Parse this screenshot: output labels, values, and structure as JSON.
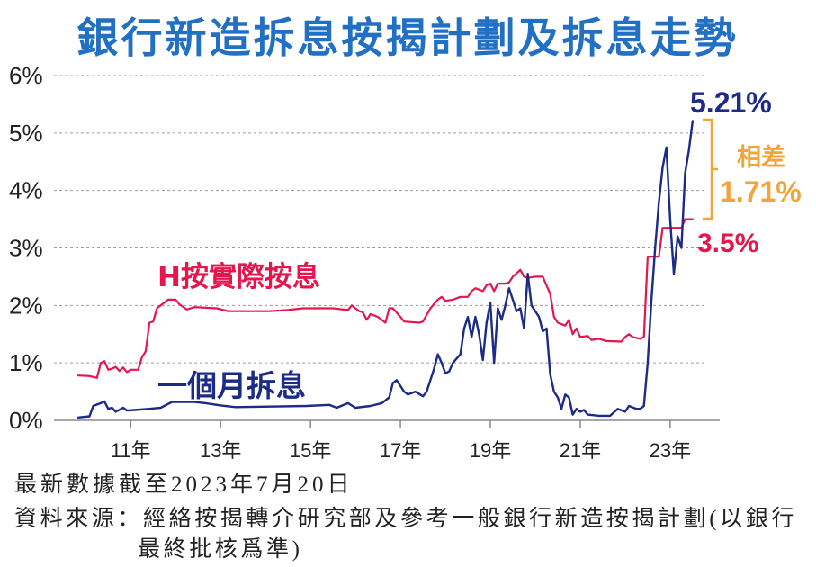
{
  "chart_data": {
    "type": "line",
    "title": "銀行新造拆息按揭計劃及拆息走勢",
    "xlabel": "",
    "ylabel": "",
    "xlim": [
      "2009-05",
      "2024-02"
    ],
    "ylim": [
      0,
      6
    ],
    "grid": true,
    "y_ticks": [
      {
        "label": "0%",
        "value": 0
      },
      {
        "label": "1%",
        "value": 1
      },
      {
        "label": "2%",
        "value": 2
      },
      {
        "label": "3%",
        "value": 3
      },
      {
        "label": "4%",
        "value": 4
      },
      {
        "label": "5%",
        "value": 5
      },
      {
        "label": "6%",
        "value": 6
      }
    ],
    "x_ticks": [
      {
        "label": "11年",
        "date": "2011-01"
      },
      {
        "label": "13年",
        "date": "2013-01"
      },
      {
        "label": "15年",
        "date": "2015-01"
      },
      {
        "label": "17年",
        "date": "2017-01"
      },
      {
        "label": "19年",
        "date": "2019-01"
      },
      {
        "label": "21年",
        "date": "2021-01"
      },
      {
        "label": "23年",
        "date": "2023-01"
      }
    ],
    "series": [
      {
        "name": "H按實際按息",
        "color": "#e3164d",
        "points": [
          [
            "2009-11",
            0.78
          ],
          [
            "2010-02",
            0.77
          ],
          [
            "2010-04",
            0.74
          ],
          [
            "2010-05",
            1.0
          ],
          [
            "2010-06",
            1.03
          ],
          [
            "2010-07",
            0.88
          ],
          [
            "2010-08",
            0.9
          ],
          [
            "2010-09",
            0.93
          ],
          [
            "2010-10",
            0.86
          ],
          [
            "2010-11",
            0.92
          ],
          [
            "2010-12",
            0.84
          ],
          [
            "2011-01",
            0.88
          ],
          [
            "2011-03",
            0.88
          ],
          [
            "2011-04",
            1.1
          ],
          [
            "2011-05",
            1.2
          ],
          [
            "2011-06",
            1.7
          ],
          [
            "2011-07",
            1.72
          ],
          [
            "2011-08",
            1.95
          ],
          [
            "2011-09",
            2.0
          ],
          [
            "2011-11",
            2.1
          ],
          [
            "2012-01",
            2.1
          ],
          [
            "2012-02",
            2.02
          ],
          [
            "2012-04",
            1.93
          ],
          [
            "2012-06",
            1.97
          ],
          [
            "2012-09",
            1.96
          ],
          [
            "2012-12",
            1.95
          ],
          [
            "2013-03",
            1.9
          ],
          [
            "2014-02",
            1.9
          ],
          [
            "2014-07",
            1.92
          ],
          [
            "2014-11",
            1.95
          ],
          [
            "2015-07",
            1.95
          ],
          [
            "2015-11",
            1.92
          ],
          [
            "2015-12",
            2.0
          ],
          [
            "2016-02",
            1.9
          ],
          [
            "2016-03",
            1.88
          ],
          [
            "2016-04",
            1.75
          ],
          [
            "2016-05",
            1.85
          ],
          [
            "2016-07",
            1.8
          ],
          [
            "2016-09",
            1.7
          ],
          [
            "2016-10",
            1.95
          ],
          [
            "2016-11",
            1.95
          ],
          [
            "2017-01",
            1.8
          ],
          [
            "2017-02",
            1.72
          ],
          [
            "2017-06",
            1.7
          ],
          [
            "2017-07",
            1.72
          ],
          [
            "2017-09",
            1.95
          ],
          [
            "2017-11",
            2.1
          ],
          [
            "2017-12",
            2.15
          ],
          [
            "2018-01",
            2.08
          ],
          [
            "2018-03",
            2.1
          ],
          [
            "2018-05",
            2.15
          ],
          [
            "2018-07",
            2.15
          ],
          [
            "2018-08",
            2.25
          ],
          [
            "2018-09",
            2.3
          ],
          [
            "2018-11",
            2.25
          ],
          [
            "2018-12",
            2.35
          ],
          [
            "2019-01",
            2.38
          ],
          [
            "2019-02",
            2.25
          ],
          [
            "2019-03",
            2.38
          ],
          [
            "2019-05",
            2.38
          ],
          [
            "2019-06",
            2.4
          ],
          [
            "2019-07",
            2.5
          ],
          [
            "2019-09",
            2.62
          ],
          [
            "2019-10",
            2.5
          ],
          [
            "2019-11",
            2.48
          ],
          [
            "2020-01",
            2.5
          ],
          [
            "2020-03",
            2.5
          ],
          [
            "2020-05",
            2.2
          ],
          [
            "2020-06",
            1.8
          ],
          [
            "2020-07",
            1.7
          ],
          [
            "2020-09",
            1.65
          ],
          [
            "2020-10",
            1.75
          ],
          [
            "2020-11",
            1.5
          ],
          [
            "2020-12",
            1.6
          ],
          [
            "2021-01",
            1.45
          ],
          [
            "2021-03",
            1.47
          ],
          [
            "2021-04",
            1.4
          ],
          [
            "2021-06",
            1.42
          ],
          [
            "2021-08",
            1.38
          ],
          [
            "2021-12",
            1.37
          ],
          [
            "2022-01",
            1.45
          ],
          [
            "2022-02",
            1.5
          ],
          [
            "2022-03",
            1.45
          ],
          [
            "2022-05",
            1.42
          ],
          [
            "2022-06",
            1.45
          ],
          [
            "2022-07",
            2.85
          ],
          [
            "2022-10",
            2.85
          ],
          [
            "2022-11",
            3.35
          ],
          [
            "2023-04",
            3.35
          ],
          [
            "2023-05",
            3.5
          ],
          [
            "2023-07",
            3.5
          ]
        ]
      },
      {
        "name": "一個月拆息",
        "color": "#1b2b86",
        "points": [
          [
            "2009-11",
            0.05
          ],
          [
            "2010-02",
            0.07
          ],
          [
            "2010-03",
            0.25
          ],
          [
            "2010-05",
            0.3
          ],
          [
            "2010-06",
            0.33
          ],
          [
            "2010-07",
            0.2
          ],
          [
            "2010-08",
            0.22
          ],
          [
            "2010-09",
            0.15
          ],
          [
            "2010-11",
            0.22
          ],
          [
            "2010-12",
            0.17
          ],
          [
            "2011-02",
            0.18
          ],
          [
            "2011-06",
            0.2
          ],
          [
            "2011-09",
            0.22
          ],
          [
            "2011-12",
            0.32
          ],
          [
            "2012-06",
            0.32
          ],
          [
            "2012-09",
            0.3
          ],
          [
            "2013-01",
            0.26
          ],
          [
            "2013-05",
            0.23
          ],
          [
            "2014-02",
            0.24
          ],
          [
            "2014-12",
            0.25
          ],
          [
            "2015-06",
            0.27
          ],
          [
            "2015-08",
            0.22
          ],
          [
            "2015-11",
            0.3
          ],
          [
            "2016-01",
            0.22
          ],
          [
            "2016-05",
            0.25
          ],
          [
            "2016-08",
            0.3
          ],
          [
            "2016-10",
            0.4
          ],
          [
            "2016-11",
            0.65
          ],
          [
            "2016-12",
            0.7
          ],
          [
            "2017-02",
            0.5
          ],
          [
            "2017-03",
            0.45
          ],
          [
            "2017-05",
            0.5
          ],
          [
            "2017-07",
            0.42
          ],
          [
            "2017-08",
            0.5
          ],
          [
            "2017-10",
            0.9
          ],
          [
            "2017-11",
            1.15
          ],
          [
            "2017-12",
            1.0
          ],
          [
            "2018-01",
            0.82
          ],
          [
            "2018-02",
            0.85
          ],
          [
            "2018-03",
            1.0
          ],
          [
            "2018-05",
            1.15
          ],
          [
            "2018-06",
            1.6
          ],
          [
            "2018-07",
            1.8
          ],
          [
            "2018-08",
            1.45
          ],
          [
            "2018-09",
            1.8
          ],
          [
            "2018-10",
            1.5
          ],
          [
            "2018-11",
            1.05
          ],
          [
            "2018-12",
            1.7
          ],
          [
            "2019-01",
            2.05
          ],
          [
            "2019-02",
            1.0
          ],
          [
            "2019-03",
            1.95
          ],
          [
            "2019-04",
            1.75
          ],
          [
            "2019-05",
            2.0
          ],
          [
            "2019-06",
            2.3
          ],
          [
            "2019-08",
            1.9
          ],
          [
            "2019-09",
            1.95
          ],
          [
            "2019-10",
            1.6
          ],
          [
            "2019-11",
            2.55
          ],
          [
            "2019-12",
            2.0
          ],
          [
            "2020-02",
            1.8
          ],
          [
            "2020-03",
            1.55
          ],
          [
            "2020-04",
            1.6
          ],
          [
            "2020-05",
            0.8
          ],
          [
            "2020-06",
            0.5
          ],
          [
            "2020-07",
            0.4
          ],
          [
            "2020-08",
            0.2
          ],
          [
            "2020-09",
            0.45
          ],
          [
            "2020-10",
            0.4
          ],
          [
            "2020-11",
            0.1
          ],
          [
            "2020-12",
            0.2
          ],
          [
            "2021-01",
            0.15
          ],
          [
            "2021-02",
            0.18
          ],
          [
            "2021-03",
            0.1
          ],
          [
            "2021-06",
            0.08
          ],
          [
            "2021-09",
            0.08
          ],
          [
            "2021-11",
            0.2
          ],
          [
            "2022-01",
            0.15
          ],
          [
            "2022-02",
            0.25
          ],
          [
            "2022-04",
            0.2
          ],
          [
            "2022-05",
            0.2
          ],
          [
            "2022-06",
            0.25
          ],
          [
            "2022-07",
            1.0
          ],
          [
            "2022-08",
            2.1
          ],
          [
            "2022-09",
            3.0
          ],
          [
            "2022-10",
            3.8
          ],
          [
            "2022-11",
            4.4
          ],
          [
            "2022-12",
            4.75
          ],
          [
            "2023-01",
            3.5
          ],
          [
            "2023-02",
            2.55
          ],
          [
            "2023-03",
            3.2
          ],
          [
            "2023-04",
            3.0
          ],
          [
            "2023-05",
            4.3
          ],
          [
            "2023-06",
            4.7
          ],
          [
            "2023-07",
            5.21
          ]
        ]
      }
    ],
    "annotations": {
      "latest_hibor": "5.21%",
      "spread_label": "相差",
      "spread_value": "1.71%",
      "latest_h_rate": "3.5%",
      "spread_color": "#f2a43a"
    }
  },
  "footer": {
    "updated": "最新數據截至2023年7月20日",
    "source_line1": "資料來源：經絡按揭轉介研究部及參考一般銀行新造按揭計劃(以銀行",
    "source_line2": "最終批核爲準)"
  }
}
